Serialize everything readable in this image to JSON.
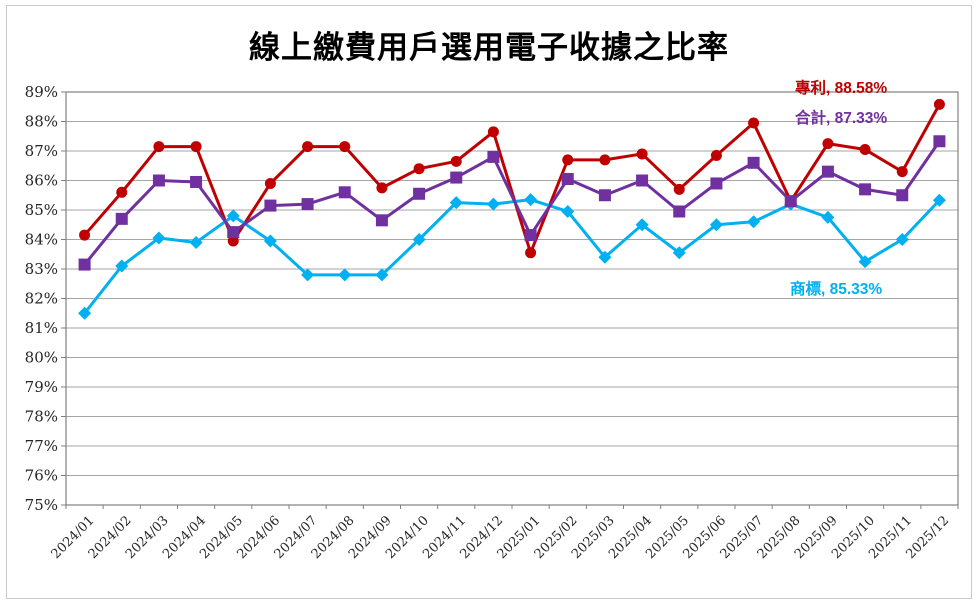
{
  "title": "線上繳費用戶選用電子收據之比率",
  "chart_data": {
    "type": "line",
    "x": [
      "2024/01",
      "2024/02",
      "2024/03",
      "2024/04",
      "2024/05",
      "2024/06",
      "2024/07",
      "2024/08",
      "2024/09",
      "2024/10",
      "2024/11",
      "2024/12",
      "2025/01",
      "2025/02",
      "2025/03",
      "2025/04",
      "2025/05",
      "2025/06",
      "2025/07",
      "2025/08",
      "2025/09",
      "2025/10",
      "2025/11",
      "2025/12"
    ],
    "ylim": [
      75,
      89
    ],
    "ytick_step": 1,
    "yticks": [
      "75%",
      "76%",
      "77%",
      "78%",
      "79%",
      "80%",
      "81%",
      "82%",
      "83%",
      "84%",
      "85%",
      "86%",
      "87%",
      "88%",
      "89%"
    ],
    "grid": true,
    "legend_position": "end-labels",
    "series": [
      {
        "name": "專利",
        "color": "#C00000",
        "marker": "circle",
        "label": "專利, 88.58%",
        "end_value": 88.58,
        "values": [
          84.15,
          85.6,
          87.15,
          87.15,
          83.95,
          85.9,
          87.15,
          87.15,
          85.75,
          86.4,
          86.65,
          87.65,
          83.55,
          86.7,
          86.7,
          86.9,
          85.7,
          86.85,
          87.95,
          85.3,
          87.25,
          87.05,
          86.3,
          88.58
        ]
      },
      {
        "name": "合計",
        "color": "#7030A0",
        "marker": "square",
        "label": "合計, 87.33%",
        "end_value": 87.33,
        "values": [
          83.15,
          84.7,
          86.0,
          85.95,
          84.25,
          85.15,
          85.2,
          85.6,
          84.65,
          85.55,
          86.1,
          86.8,
          84.15,
          86.05,
          85.5,
          86.0,
          84.95,
          85.9,
          86.6,
          85.3,
          86.3,
          85.7,
          85.5,
          87.33
        ]
      },
      {
        "name": "商標",
        "color": "#00B0F0",
        "marker": "diamond",
        "label": "商標, 85.33%",
        "end_value": 85.33,
        "values": [
          81.5,
          83.1,
          84.05,
          83.9,
          84.8,
          83.95,
          82.8,
          82.8,
          82.8,
          84.0,
          85.25,
          85.2,
          85.35,
          84.95,
          83.4,
          84.5,
          83.55,
          84.5,
          84.6,
          85.2,
          84.75,
          83.25,
          84.0,
          85.33
        ]
      }
    ]
  }
}
